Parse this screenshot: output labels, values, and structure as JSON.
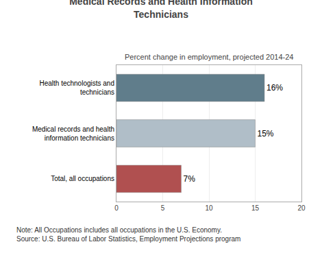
{
  "chart_data": {
    "type": "bar",
    "orientation": "horizontal",
    "title": "Medical Records and Health Information\nTechnicians",
    "subtitle": "Percent change in employment, projected 2014-24",
    "categories": [
      "Total, all occupations",
      "Medical records and health\ninformation technicians",
      "Health technologists and\ntechnicians"
    ],
    "values": [
      7,
      15,
      16
    ],
    "value_labels": [
      "7%",
      "15%",
      "16%"
    ],
    "data_labels": true,
    "colors": [
      "#b05050",
      "#b0bec8",
      "#607d8b"
    ],
    "xlim": [
      0,
      20
    ],
    "xticks": [
      0,
      5,
      10,
      15,
      20
    ],
    "grid": true,
    "annotations": [
      "Note: All Occupations includes all occupations in the U.S. Economy.",
      "Source: U.S. Bureau of Labor Statistics, Employment Projections program"
    ]
  }
}
